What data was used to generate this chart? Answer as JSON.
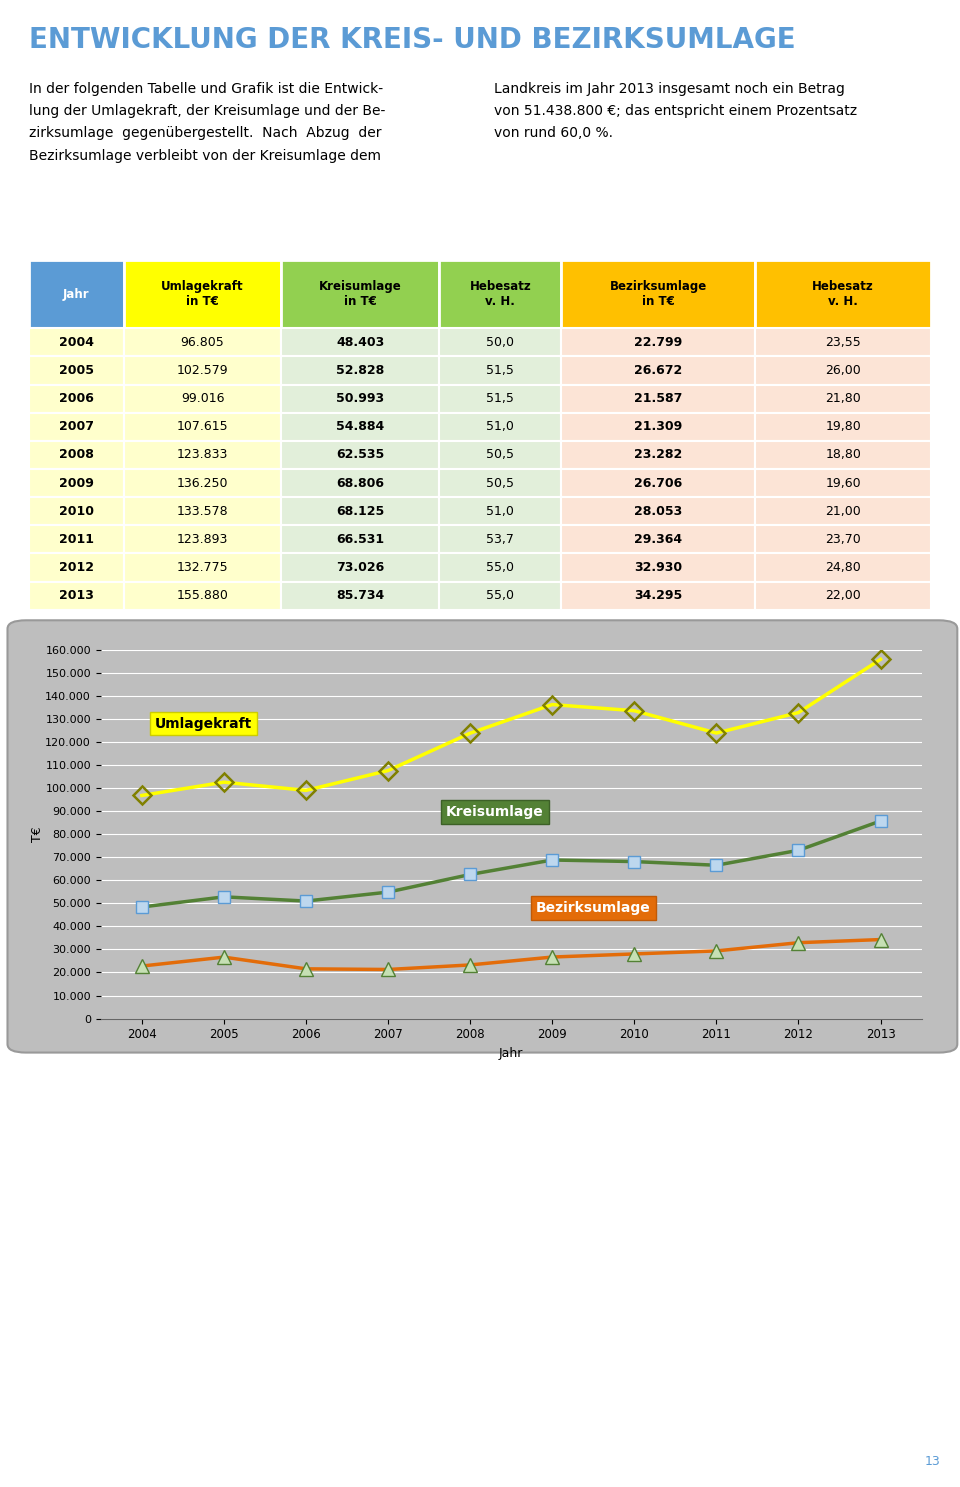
{
  "title": "ENTWICKLUNG DER KREIS- UND BEZIRKSUMLAGE",
  "title_color": "#5B9BD5",
  "body_text_left": "In der folgenden Tabelle und Grafik ist die Entwick-\nlung der Umlagekraft, der Kreisumlage und der Be-\nzirksumlage  gegenübergestellt.  Nach  Abzug  der\nBezirksumlage verbleibt von der Kreisumlage dem",
  "body_text_right": "Landkreis im Jahr 2013 insgesamt noch ein Betrag\nvon 51.438.800 €; das entspricht einem Prozentsatz\nvon rund 60,0 %.",
  "header_bg_colors": [
    "#5B9BD5",
    "#FFFF00",
    "#92D050",
    "#92D050",
    "#FFC000",
    "#FFC000"
  ],
  "header_text_colors": [
    "#FFFFFF",
    "#000000",
    "#000000",
    "#000000",
    "#000000",
    "#000000"
  ],
  "header_labels": [
    "Jahr",
    "Umlagekraft\nin T€",
    "Kreisumlage\nin T€",
    "Hebesatz\nv. H.",
    "Bezirksumlage\nin T€",
    "Hebesatz\nv. H."
  ],
  "years": [
    2004,
    2005,
    2006,
    2007,
    2008,
    2009,
    2010,
    2011,
    2012,
    2013
  ],
  "umlagekraft_str": [
    "96.805",
    "102.579",
    "99.016",
    "107.615",
    "123.833",
    "136.250",
    "133.578",
    "123.893",
    "132.775",
    "155.880"
  ],
  "kreisumlage_str": [
    "48.403",
    "52.828",
    "50.993",
    "54.884",
    "62.535",
    "68.806",
    "68.125",
    "66.531",
    "73.026",
    "85.734"
  ],
  "hebesatz_kreis": [
    "50,0",
    "51,5",
    "51,5",
    "51,0",
    "50,5",
    "50,5",
    "51,0",
    "53,7",
    "55,0",
    "55,0"
  ],
  "bezirksumlage_str": [
    "22.799",
    "26.672",
    "21.587",
    "21.309",
    "23.282",
    "26.706",
    "28.053",
    "29.364",
    "32.930",
    "34.295"
  ],
  "hebesatz_bezirk": [
    "23,55",
    "26,00",
    "21,80",
    "19,80",
    "18,80",
    "19,60",
    "21,00",
    "23,70",
    "24,80",
    "22,00"
  ],
  "umlagekraft_vals": [
    96805,
    102579,
    99016,
    107615,
    123833,
    136250,
    133578,
    123893,
    132775,
    155880
  ],
  "kreisumlage_vals": [
    48403,
    52828,
    50993,
    54884,
    62535,
    68806,
    68125,
    66531,
    73026,
    85734
  ],
  "bezirksumlage_vals": [
    22799,
    26672,
    21587,
    21309,
    23282,
    26706,
    28053,
    29364,
    32930,
    34295
  ],
  "row_bg_yellow": "#FFFFCC",
  "row_bg_green": "#E2EFDA",
  "row_bg_orange": "#FCE4D6",
  "chart_bg": "#BEBEBE",
  "umlagekraft_line_color": "#FFFF00",
  "umlagekraft_marker_color": "#808000",
  "kreisumlage_line_color": "#538135",
  "kreisumlage_marker_fill": "#BDD7EE",
  "kreisumlage_marker_edge": "#5B9BD5",
  "bezirksumlage_line_color": "#E36C09",
  "bezirksumlage_marker_fill": "#C6E0B4",
  "bezirksumlage_marker_edge": "#538135",
  "ylabel": "T€",
  "xlabel": "Jahr",
  "yticks": [
    0,
    10000,
    20000,
    30000,
    40000,
    50000,
    60000,
    70000,
    80000,
    90000,
    100000,
    110000,
    120000,
    130000,
    140000,
    150000,
    160000
  ],
  "page_number": "13",
  "page_bg": "#FFFFFF",
  "col_widths": [
    0.105,
    0.175,
    0.175,
    0.135,
    0.215,
    0.195
  ]
}
